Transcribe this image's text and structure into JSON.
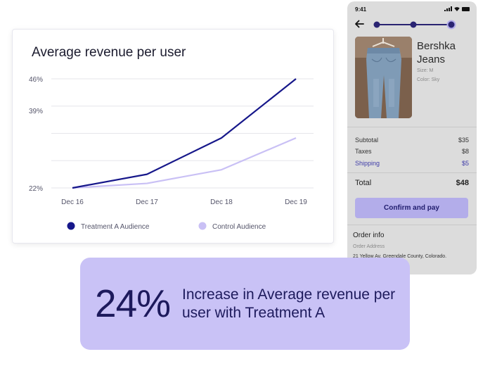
{
  "phone": {
    "status_time": "9:41",
    "product": {
      "name": "Bershka Jeans",
      "size": "Size: M",
      "color": "Color: Sky"
    },
    "summary": {
      "subtotal_label": "Subtotal",
      "subtotal_value": "$35",
      "taxes_label": "Taxes",
      "taxes_value": "$8",
      "shipping_label": "Shipping",
      "shipping_value": "$5",
      "total_label": "Total",
      "total_value": "$48"
    },
    "confirm_button": "Confirm and pay",
    "order_info": {
      "title": "Order info",
      "address_label": "Order Address",
      "address": "21 Yellow Av, Greendale County, Colorado."
    },
    "checkout_steps": 3,
    "current_step": 3
  },
  "colors": {
    "treatment": "#16178a",
    "control": "#c9c0f5",
    "accent": "#b3adea",
    "callout_bg": "#c9c2f6"
  },
  "chart_data": {
    "type": "line",
    "title": "Average revenue per user",
    "categories": [
      "Dec 16",
      "Dec 17",
      "Dec 18",
      "Dec 19"
    ],
    "y_ticks": [
      "46%",
      "39%",
      "22%"
    ],
    "ylim": [
      22,
      46
    ],
    "grid": true,
    "legend_position": "bottom",
    "series": [
      {
        "name": "Treatment A Audience",
        "values": [
          22,
          25,
          33,
          46
        ],
        "color": "#16178a"
      },
      {
        "name": "Control Audience",
        "values": [
          22,
          23,
          26,
          33
        ],
        "color": "#c9c0f5"
      }
    ]
  },
  "callout": {
    "value": "24%",
    "text": "Increase in Average revenue per user with Treatment A"
  }
}
